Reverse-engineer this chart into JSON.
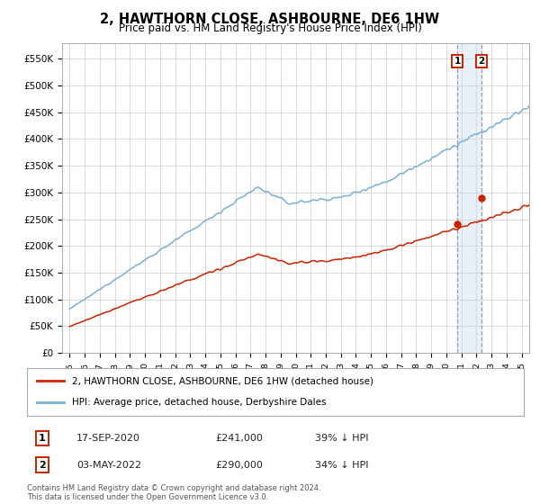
{
  "title": "2, HAWTHORN CLOSE, ASHBOURNE, DE6 1HW",
  "subtitle": "Price paid vs. HM Land Registry's House Price Index (HPI)",
  "ylabel_ticks": [
    "£0",
    "£50K",
    "£100K",
    "£150K",
    "£200K",
    "£250K",
    "£300K",
    "£350K",
    "£400K",
    "£450K",
    "£500K",
    "£550K"
  ],
  "ytick_vals": [
    0,
    50000,
    100000,
    150000,
    200000,
    250000,
    300000,
    350000,
    400000,
    450000,
    500000,
    550000
  ],
  "ylim": [
    0,
    580000
  ],
  "xlim_start": 1994.5,
  "xlim_end": 2025.5,
  "hpi_color": "#7bafd4",
  "price_color": "#cc2200",
  "highlight_color": "#e8f0f8",
  "vline_color": "#9999bb",
  "transaction1_x": 2020.72,
  "transaction1_price": 241000,
  "transaction2_x": 2022.34,
  "transaction2_price": 290000,
  "legend_line1": "2, HAWTHORN CLOSE, ASHBOURNE, DE6 1HW (detached house)",
  "legend_line2": "HPI: Average price, detached house, Derbyshire Dales",
  "annotation1_date": "17-SEP-2020",
  "annotation1_price": "£241,000",
  "annotation1_hpi": "39% ↓ HPI",
  "annotation2_date": "03-MAY-2022",
  "annotation2_price": "£290,000",
  "annotation2_hpi": "34% ↓ HPI",
  "footer": "Contains HM Land Registry data © Crown copyright and database right 2024.\nThis data is licensed under the Open Government Licence v3.0.",
  "background_color": "#ffffff",
  "grid_color": "#cccccc"
}
